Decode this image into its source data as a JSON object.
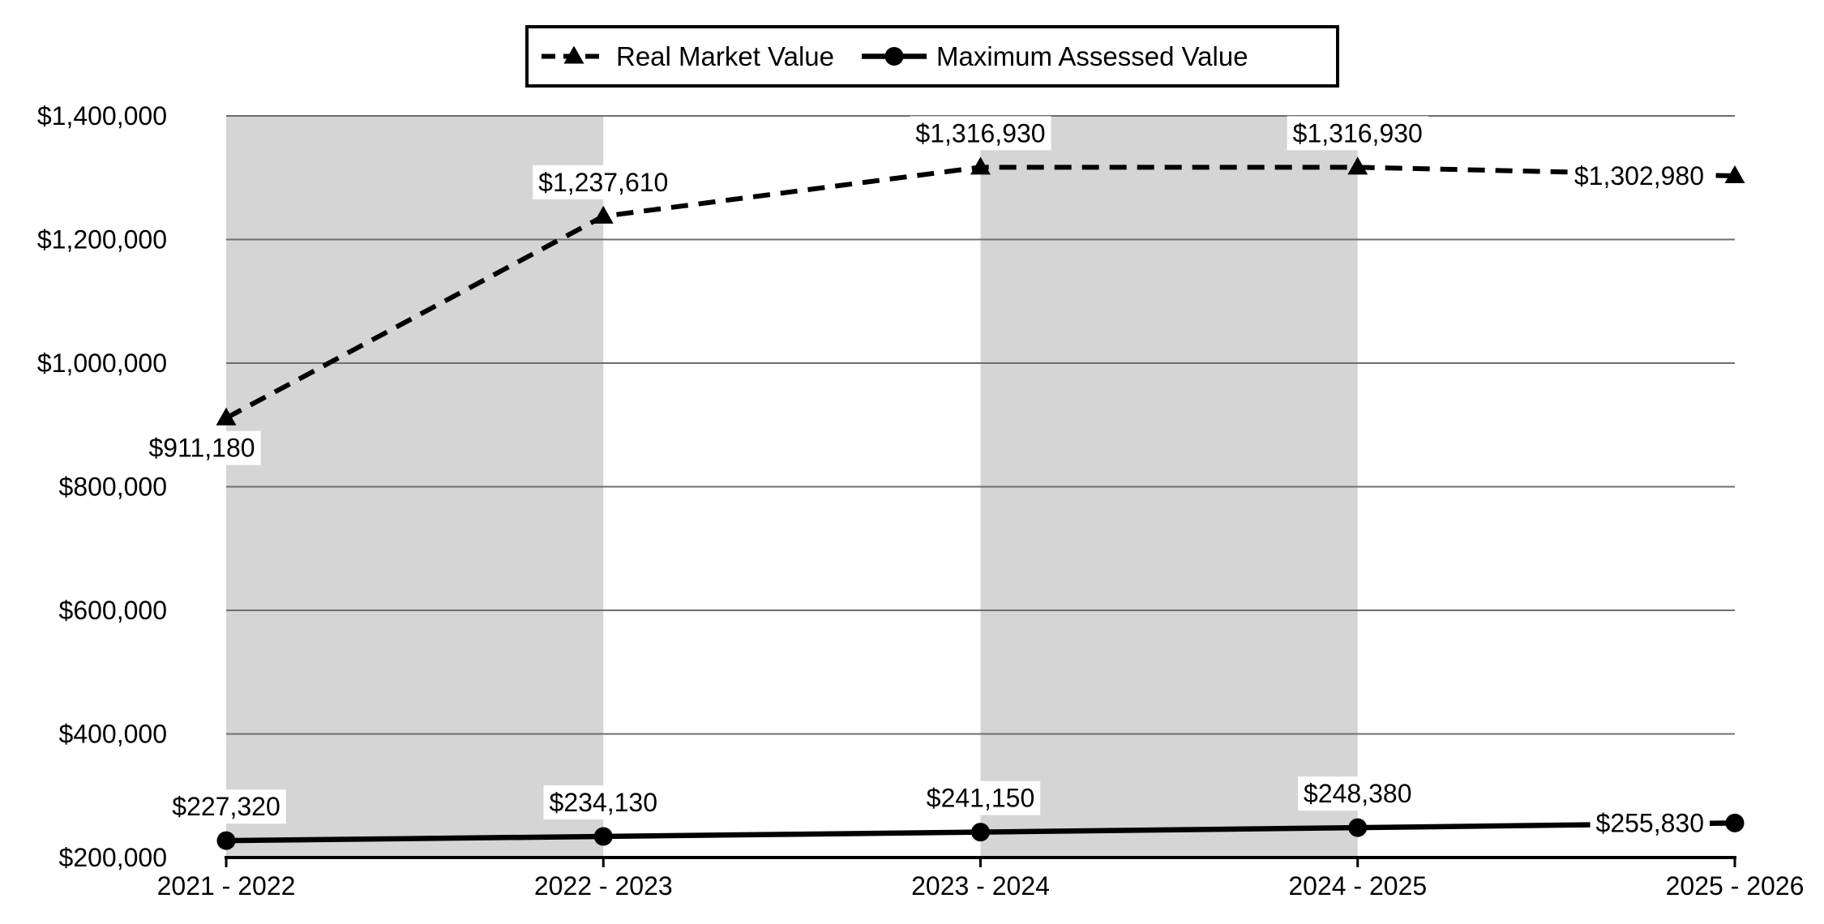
{
  "chart_data": {
    "type": "line",
    "title": "",
    "categories": [
      "2021 - 2022",
      "2022 - 2023",
      "2023 - 2024",
      "2024 - 2025",
      "2025 - 2026"
    ],
    "series": [
      {
        "name": "Real Market Value",
        "values": [
          911180,
          1237610,
          1316930,
          1316930,
          1302980
        ],
        "labels": [
          "$911,180",
          "$1,237,610",
          "$1,316,930",
          "$1,316,930",
          "$1,302,980"
        ],
        "label_positions": [
          "below-left",
          "above",
          "above",
          "above",
          "left"
        ],
        "line_style": "dashed",
        "marker": "triangle"
      },
      {
        "name": "Maximum Assessed Value",
        "values": [
          227320,
          234130,
          241150,
          248380,
          255830
        ],
        "labels": [
          "$227,320",
          "$234,130",
          "$241,150",
          "$248,380",
          "$255,830"
        ],
        "label_positions": [
          "above",
          "above",
          "above",
          "above",
          "left"
        ],
        "line_style": "solid",
        "marker": "circle"
      }
    ],
    "y_axis": {
      "min": 200000,
      "max": 1400000,
      "tick_step": 200000,
      "tick_labels": [
        "$200,000",
        "$400,000",
        "$600,000",
        "$800,000",
        "$1,000,000",
        "$1,200,000",
        "$1,400,000"
      ]
    },
    "shaded_intervals": [
      [
        0,
        1
      ],
      [
        2,
        3
      ]
    ],
    "legend_position": "top",
    "grid": true,
    "colors": {
      "series_line": "#000000",
      "band_fill": "#D5D5D5",
      "gridline": "#6E6E6E",
      "axis_line": "#000000",
      "label_background": "#FFFFFF",
      "chart_background": "#FFFFFF"
    }
  }
}
